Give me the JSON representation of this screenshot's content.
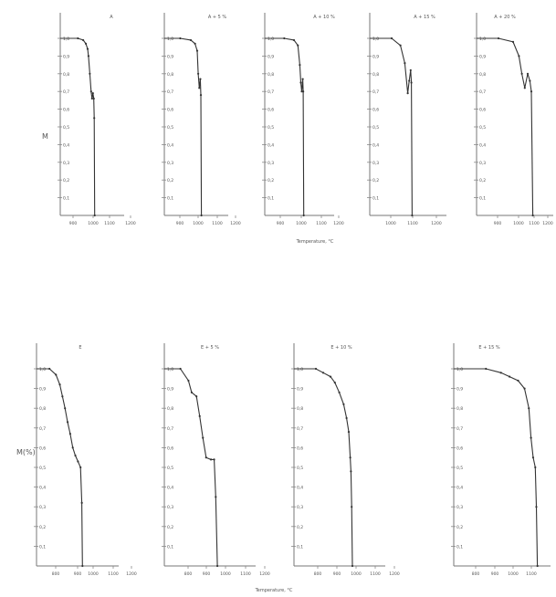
{
  "figure": {
    "bottom_xlabel": "Temperature, °C",
    "top_ylabel": "M",
    "bottom_ylabel": "M(%)"
  },
  "chart_data": [
    {
      "type": "line",
      "title": "A",
      "ylabel": "M",
      "xlabel": "",
      "ylim": [
        0,
        1.0
      ],
      "xticks": [
        "900",
        "1000",
        "1100",
        "1200"
      ],
      "yticks": [
        "0,1",
        "0,2",
        "0,3",
        "0,4",
        "0,5",
        "0,6",
        "0,7",
        "0,8",
        "0,9",
        "1,0"
      ],
      "series": [
        {
          "x": [
            700,
            900,
            960,
            990,
            1010,
            1020,
            1035,
            1050,
            1060,
            1070,
            1080,
            1085,
            1090
          ],
          "y": [
            1.0,
            1.0,
            0.99,
            0.97,
            0.94,
            0.9,
            0.8,
            0.7,
            0.66,
            0.69,
            0.66,
            0.55,
            0.0
          ]
        }
      ]
    },
    {
      "type": "line",
      "title": "A + 5 %",
      "ylabel": "",
      "xlabel": "",
      "ylim": [
        0,
        1.0
      ],
      "xticks": [
        "900",
        "1000",
        "1100",
        "1200"
      ],
      "yticks": [
        "0,1",
        "0,2",
        "0,3",
        "0,4",
        "0,5",
        "0,6",
        "0,7",
        "0,8",
        "0,9",
        "1,0"
      ],
      "series": [
        {
          "x": [
            750,
            900,
            1000,
            1040,
            1060,
            1070,
            1080,
            1090,
            1095,
            1100
          ],
          "y": [
            1.0,
            1.0,
            0.99,
            0.97,
            0.93,
            0.8,
            0.72,
            0.77,
            0.68,
            0.0
          ]
        }
      ]
    },
    {
      "type": "line",
      "title": "A + 10 %",
      "ylabel": "",
      "xlabel": "Temperature, °C",
      "ylim": [
        0,
        1.0
      ],
      "xticks": [
        "900",
        "1000",
        "1100",
        "1200"
      ],
      "yticks": [
        "0,1",
        "0,2",
        "0,3",
        "0,4",
        "0,5",
        "0,6",
        "0,7",
        "0,8",
        "0,9",
        "1,0"
      ],
      "series": [
        {
          "x": [
            700,
            900,
            1000,
            1040,
            1060,
            1070,
            1080,
            1090,
            1095,
            1100
          ],
          "y": [
            1.0,
            1.0,
            0.99,
            0.96,
            0.85,
            0.75,
            0.7,
            0.77,
            0.7,
            0.0
          ]
        }
      ]
    },
    {
      "type": "line",
      "title": "A + 15 %",
      "ylabel": "",
      "xlabel": "",
      "ylim": [
        0,
        1.0
      ],
      "xticks": [
        "1000",
        "1100",
        "1200"
      ],
      "yticks": [
        "0,1",
        "0,2",
        "0,3",
        "0,4",
        "0,5",
        "0,6",
        "0,7",
        "0,8",
        "0,9",
        "1,0"
      ],
      "series": [
        {
          "x": [
            850,
            1000,
            1060,
            1090,
            1110,
            1120,
            1130,
            1135,
            1140
          ],
          "y": [
            1.0,
            1.0,
            0.96,
            0.86,
            0.69,
            0.76,
            0.82,
            0.75,
            0.0
          ]
        }
      ]
    },
    {
      "type": "line",
      "title": "A + 20 %",
      "ylabel": "",
      "xlabel": "",
      "ylim": [
        0,
        1.0
      ],
      "xticks": [
        "900",
        "1000",
        "1100",
        "1200"
      ],
      "yticks": [
        "0,1",
        "0,2",
        "0,3",
        "0,4",
        "0,5",
        "0,6",
        "0,7",
        "0,8",
        "0,9",
        "1,0"
      ],
      "series": [
        {
          "x": [
            800,
            950,
            1050,
            1090,
            1110,
            1130,
            1150,
            1165,
            1175,
            1185
          ],
          "y": [
            1.0,
            1.0,
            0.98,
            0.9,
            0.8,
            0.72,
            0.8,
            0.76,
            0.7,
            0.0
          ]
        }
      ]
    },
    {
      "type": "line",
      "title": "E",
      "ylabel": "M(%)",
      "xlabel": "",
      "ylim": [
        0,
        1.0
      ],
      "xticks": [
        "800",
        "900",
        "1000",
        "1100",
        "1200"
      ],
      "yticks": [
        "0,1",
        "0,2",
        "0,3",
        "0,4",
        "0,5",
        "0,6",
        "0,7",
        "0,8",
        "0,9",
        "1,0"
      ],
      "series": [
        {
          "x": [
            700,
            800,
            850,
            880,
            900,
            920,
            940,
            960,
            980,
            1000,
            1020,
            1040,
            1050,
            1055
          ],
          "y": [
            1.0,
            1.0,
            0.97,
            0.92,
            0.86,
            0.8,
            0.73,
            0.67,
            0.6,
            0.56,
            0.53,
            0.5,
            0.32,
            0.0
          ]
        }
      ]
    },
    {
      "type": "line",
      "title": "E + 5 %",
      "ylabel": "",
      "xlabel": "",
      "ylim": [
        0,
        1.0
      ],
      "xticks": [
        "800",
        "900",
        "1000",
        "1100",
        "1200"
      ],
      "yticks": [
        "0,1",
        "0,2",
        "0,3",
        "0,4",
        "0,5",
        "0,6",
        "0,7",
        "0,8",
        "0,9",
        "1,0"
      ],
      "series": [
        {
          "x": [
            750,
            850,
            900,
            920,
            950,
            970,
            990,
            1010,
            1040,
            1060,
            1070,
            1080
          ],
          "y": [
            1.0,
            1.0,
            0.94,
            0.88,
            0.86,
            0.76,
            0.65,
            0.55,
            0.54,
            0.54,
            0.35,
            0.0
          ]
        }
      ]
    },
    {
      "type": "line",
      "title": "E + 10 %",
      "ylabel": "",
      "xlabel": "Temperature, °C",
      "ylim": [
        0,
        1.0
      ],
      "xticks": [
        "800",
        "900",
        "1000",
        "1100",
        "1200"
      ],
      "yticks": [
        "0,1",
        "0,2",
        "0,3",
        "0,4",
        "0,5",
        "0,6",
        "0,7",
        "0,8",
        "0,9",
        "1,0"
      ],
      "series": [
        {
          "x": [
            700,
            850,
            900,
            950,
            980,
            1010,
            1040,
            1060,
            1075,
            1085,
            1090,
            1095,
            1100
          ],
          "y": [
            1.0,
            1.0,
            0.98,
            0.96,
            0.93,
            0.88,
            0.82,
            0.75,
            0.68,
            0.55,
            0.48,
            0.3,
            0.0
          ]
        }
      ]
    },
    {
      "type": "line",
      "title": "E + 15 %",
      "ylabel": "",
      "xlabel": "",
      "ylim": [
        0,
        1.0
      ],
      "xticks": [
        "800",
        "900",
        "1000",
        "1100"
      ],
      "yticks": [
        "0,1",
        "0,2",
        "0,3",
        "0,4",
        "0,5",
        "0,6",
        "0,7",
        "0,8",
        "0,9",
        "1,0"
      ],
      "series": [
        {
          "x": [
            700,
            850,
            920,
            960,
            1000,
            1030,
            1050,
            1060,
            1070,
            1080,
            1085,
            1090
          ],
          "y": [
            1.0,
            1.0,
            0.98,
            0.96,
            0.94,
            0.9,
            0.8,
            0.65,
            0.55,
            0.5,
            0.3,
            0.0
          ]
        }
      ]
    }
  ]
}
